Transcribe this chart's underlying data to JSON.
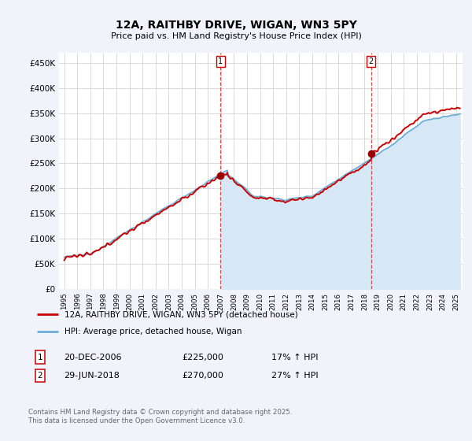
{
  "title": "12A, RAITHBY DRIVE, WIGAN, WN3 5PY",
  "subtitle": "Price paid vs. HM Land Registry's House Price Index (HPI)",
  "ylabel_ticks": [
    "£0",
    "£50K",
    "£100K",
    "£150K",
    "£200K",
    "£250K",
    "£300K",
    "£350K",
    "£400K",
    "£450K"
  ],
  "ytick_values": [
    0,
    50000,
    100000,
    150000,
    200000,
    250000,
    300000,
    350000,
    400000,
    450000
  ],
  "ylim": [
    0,
    470000
  ],
  "sale1_date": 2006.97,
  "sale1_price": 225000,
  "sale2_date": 2018.5,
  "sale2_price": 270000,
  "hpi_color": "#6baed6",
  "hpi_fill_color": "#d6e8f5",
  "price_color": "#cc0000",
  "marker_color": "#990000",
  "vline_color": "#cc3333",
  "background_color": "#f0f4fa",
  "plot_bg": "#ffffff",
  "legend_label1": "12A, RAITHBY DRIVE, WIGAN, WN3 5PY (detached house)",
  "legend_label2": "HPI: Average price, detached house, Wigan",
  "footer": "Contains HM Land Registry data © Crown copyright and database right 2025.\nThis data is licensed under the Open Government Licence v3.0.",
  "grid_color": "#cccccc",
  "sale_box_color": "#cc0000"
}
